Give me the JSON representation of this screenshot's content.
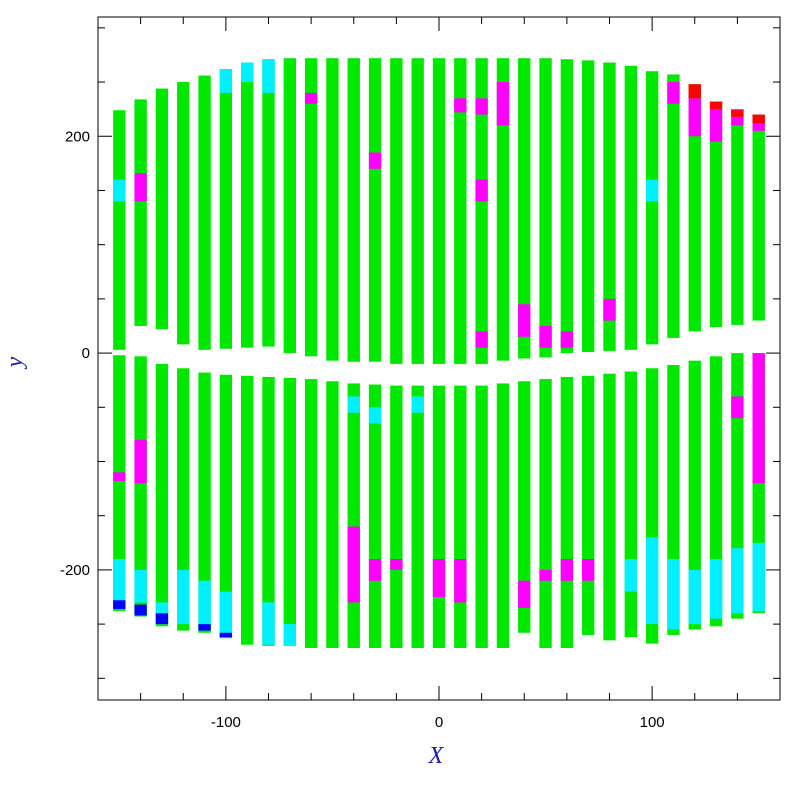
{
  "chart_data": {
    "type": "scatter",
    "title": "",
    "xlabel": "X",
    "ylabel": "y",
    "xlim": [
      -160,
      160
    ],
    "ylim": [
      -320,
      310
    ],
    "x_ticks": [
      -100,
      0,
      100
    ],
    "y_ticks": [
      -200,
      0,
      200
    ],
    "x_minor_step": 20,
    "y_minor_step": 50,
    "grid": false,
    "legend": "none",
    "colors": {
      "base": "#00e800",
      "cyan": "#00f0ff",
      "magenta": "#ff00ff",
      "red": "#ff0000",
      "blue": "#0000ff",
      "axis": "#000000",
      "axis_title": "#1a1aa8"
    },
    "columns": [
      {
        "x": -150,
        "top": [
          224,
          3
        ],
        "bottom": [
          -238,
          -2
        ]
      },
      {
        "x": -140,
        "top": [
          234,
          25
        ],
        "bottom": [
          -243,
          -3
        ]
      },
      {
        "x": -130,
        "top": [
          244,
          22
        ],
        "bottom": [
          -252,
          -10
        ]
      },
      {
        "x": -120,
        "top": [
          250,
          8
        ],
        "bottom": [
          -256,
          -14
        ]
      },
      {
        "x": -110,
        "top": [
          256,
          3
        ],
        "bottom": [
          -258,
          -18
        ]
      },
      {
        "x": -100,
        "top": [
          262,
          4
        ],
        "bottom": [
          -263,
          -20
        ]
      },
      {
        "x": -90,
        "top": [
          268,
          5
        ],
        "bottom": [
          -269,
          -21
        ]
      },
      {
        "x": -80,
        "top": [
          271,
          6
        ],
        "bottom": [
          -270,
          -22
        ]
      },
      {
        "x": -70,
        "top": [
          272,
          0
        ],
        "bottom": [
          -270,
          -23
        ]
      },
      {
        "x": -60,
        "top": [
          272,
          -3
        ],
        "bottom": [
          -272,
          -24
        ]
      },
      {
        "x": -50,
        "top": [
          272,
          -7
        ],
        "bottom": [
          -272,
          -26
        ]
      },
      {
        "x": -40,
        "top": [
          272,
          -8
        ],
        "bottom": [
          -272,
          -28
        ]
      },
      {
        "x": -30,
        "top": [
          272,
          -8
        ],
        "bottom": [
          -272,
          -29
        ]
      },
      {
        "x": -20,
        "top": [
          272,
          -10
        ],
        "bottom": [
          -272,
          -30
        ]
      },
      {
        "x": -10,
        "top": [
          272,
          -10
        ],
        "bottom": [
          -272,
          -30
        ]
      },
      {
        "x": 0,
        "top": [
          272,
          -10
        ],
        "bottom": [
          -272,
          -30
        ]
      },
      {
        "x": 10,
        "top": [
          272,
          -10
        ],
        "bottom": [
          -272,
          -30
        ]
      },
      {
        "x": 20,
        "top": [
          272,
          -10
        ],
        "bottom": [
          -272,
          -30
        ]
      },
      {
        "x": 30,
        "top": [
          272,
          -7
        ],
        "bottom": [
          -272,
          -28
        ]
      },
      {
        "x": 40,
        "top": [
          272,
          -5
        ],
        "bottom": [
          -258,
          -26
        ]
      },
      {
        "x": 50,
        "top": [
          272,
          -4
        ],
        "bottom": [
          -272,
          -24
        ]
      },
      {
        "x": 60,
        "top": [
          271,
          0
        ],
        "bottom": [
          -272,
          -22
        ]
      },
      {
        "x": 70,
        "top": [
          270,
          1
        ],
        "bottom": [
          -260,
          -21
        ]
      },
      {
        "x": 80,
        "top": [
          268,
          2
        ],
        "bottom": [
          -265,
          -19
        ]
      },
      {
        "x": 90,
        "top": [
          265,
          3
        ],
        "bottom": [
          -262,
          -17
        ]
      },
      {
        "x": 100,
        "top": [
          260,
          8
        ],
        "bottom": [
          -268,
          -14
        ]
      },
      {
        "x": 110,
        "top": [
          257,
          14
        ],
        "bottom": [
          -260,
          -11
        ]
      },
      {
        "x": 120,
        "top": [
          248,
          20
        ],
        "bottom": [
          -255,
          -7
        ]
      },
      {
        "x": 130,
        "top": [
          232,
          24
        ],
        "bottom": [
          -252,
          -3
        ]
      },
      {
        "x": 140,
        "top": [
          224,
          26
        ],
        "bottom": [
          -245,
          0
        ]
      },
      {
        "x": 150,
        "top": [
          220,
          30
        ],
        "bottom": [
          -240,
          0
        ]
      }
    ],
    "bands": [
      {
        "x": -150,
        "y": [
          140,
          160
        ],
        "c": "cyan"
      },
      {
        "x": -150,
        "y": [
          -190,
          -230
        ],
        "c": "cyan"
      },
      {
        "x": -150,
        "y": [
          -228,
          -236
        ],
        "c": "blue"
      },
      {
        "x": -150,
        "y": [
          -110,
          -118
        ],
        "c": "magenta"
      },
      {
        "x": -140,
        "y": [
          140,
          166
        ],
        "c": "magenta"
      },
      {
        "x": -140,
        "y": [
          -80,
          -120
        ],
        "c": "magenta"
      },
      {
        "x": -140,
        "y": [
          -200,
          -230
        ],
        "c": "cyan"
      },
      {
        "x": -140,
        "y": [
          -232,
          -242
        ],
        "c": "blue"
      },
      {
        "x": -130,
        "y": [
          -230,
          -250
        ],
        "c": "cyan"
      },
      {
        "x": -130,
        "y": [
          -240,
          -250
        ],
        "c": "blue"
      },
      {
        "x": -120,
        "y": [
          -200,
          -250
        ],
        "c": "cyan"
      },
      {
        "x": -110,
        "y": [
          -210,
          -255
        ],
        "c": "cyan"
      },
      {
        "x": -110,
        "y": [
          -250,
          -256
        ],
        "c": "blue"
      },
      {
        "x": -100,
        "y": [
          -220,
          -260
        ],
        "c": "cyan"
      },
      {
        "x": -100,
        "y": [
          -258,
          -262
        ],
        "c": "blue"
      },
      {
        "x": -100,
        "y": [
          240,
          262
        ],
        "c": "cyan"
      },
      {
        "x": -90,
        "y": [
          250,
          268
        ],
        "c": "cyan"
      },
      {
        "x": -80,
        "y": [
          -230,
          -269
        ],
        "c": "cyan"
      },
      {
        "x": -80,
        "y": [
          240,
          271
        ],
        "c": "cyan"
      },
      {
        "x": -70,
        "y": [
          -250,
          -270
        ],
        "c": "cyan"
      },
      {
        "x": -60,
        "y": [
          230,
          240
        ],
        "c": "magenta"
      },
      {
        "x": -40,
        "y": [
          -160,
          -230
        ],
        "c": "magenta"
      },
      {
        "x": -40,
        "y": [
          -40,
          -55
        ],
        "c": "cyan"
      },
      {
        "x": -30,
        "y": [
          170,
          185
        ],
        "c": "magenta"
      },
      {
        "x": -30,
        "y": [
          -50,
          -65
        ],
        "c": "cyan"
      },
      {
        "x": -30,
        "y": [
          -190,
          -210
        ],
        "c": "magenta"
      },
      {
        "x": -20,
        "y": [
          -190,
          -200
        ],
        "c": "magenta"
      },
      {
        "x": -10,
        "y": [
          -40,
          -55
        ],
        "c": "cyan"
      },
      {
        "x": 0,
        "y": [
          -190,
          -225
        ],
        "c": "magenta"
      },
      {
        "x": 10,
        "y": [
          -190,
          -230
        ],
        "c": "magenta"
      },
      {
        "x": 10,
        "y": [
          222,
          235
        ],
        "c": "magenta"
      },
      {
        "x": 20,
        "y": [
          140,
          160
        ],
        "c": "magenta"
      },
      {
        "x": 20,
        "y": [
          220,
          235
        ],
        "c": "magenta"
      },
      {
        "x": 20,
        "y": [
          5,
          20
        ],
        "c": "magenta"
      },
      {
        "x": 30,
        "y": [
          210,
          250
        ],
        "c": "magenta"
      },
      {
        "x": 40,
        "y": [
          -210,
          -235
        ],
        "c": "magenta"
      },
      {
        "x": 40,
        "y": [
          15,
          45
        ],
        "c": "magenta"
      },
      {
        "x": 50,
        "y": [
          -200,
          -210
        ],
        "c": "magenta"
      },
      {
        "x": 50,
        "y": [
          5,
          25
        ],
        "c": "magenta"
      },
      {
        "x": 60,
        "y": [
          -190,
          -210
        ],
        "c": "magenta"
      },
      {
        "x": 60,
        "y": [
          5,
          20
        ],
        "c": "magenta"
      },
      {
        "x": 70,
        "y": [
          -190,
          -210
        ],
        "c": "magenta"
      },
      {
        "x": 80,
        "y": [
          30,
          50
        ],
        "c": "magenta"
      },
      {
        "x": 90,
        "y": [
          -190,
          -220
        ],
        "c": "cyan"
      },
      {
        "x": 100,
        "y": [
          -170,
          -250
        ],
        "c": "cyan"
      },
      {
        "x": 100,
        "y": [
          140,
          160
        ],
        "c": "cyan"
      },
      {
        "x": 110,
        "y": [
          230,
          250
        ],
        "c": "magenta"
      },
      {
        "x": 110,
        "y": [
          -190,
          -255
        ],
        "c": "cyan"
      },
      {
        "x": 120,
        "y": [
          200,
          235
        ],
        "c": "magenta"
      },
      {
        "x": 120,
        "y": [
          235,
          248
        ],
        "c": "red"
      },
      {
        "x": 120,
        "y": [
          -200,
          -250
        ],
        "c": "cyan"
      },
      {
        "x": 130,
        "y": [
          195,
          225
        ],
        "c": "magenta"
      },
      {
        "x": 130,
        "y": [
          225,
          232
        ],
        "c": "red"
      },
      {
        "x": 130,
        "y": [
          -190,
          -245
        ],
        "c": "cyan"
      },
      {
        "x": 140,
        "y": [
          210,
          225
        ],
        "c": "magenta"
      },
      {
        "x": 140,
        "y": [
          218,
          224
        ],
        "c": "red"
      },
      {
        "x": 140,
        "y": [
          -180,
          -240
        ],
        "c": "cyan"
      },
      {
        "x": 140,
        "y": [
          -40,
          -60
        ],
        "c": "magenta"
      },
      {
        "x": 150,
        "y": [
          205,
          215
        ],
        "c": "magenta"
      },
      {
        "x": 150,
        "y": [
          212,
          220
        ],
        "c": "red"
      },
      {
        "x": 150,
        "y": [
          -175,
          -238
        ],
        "c": "cyan"
      },
      {
        "x": 150,
        "y": [
          0,
          -120
        ],
        "c": "magenta"
      }
    ]
  }
}
